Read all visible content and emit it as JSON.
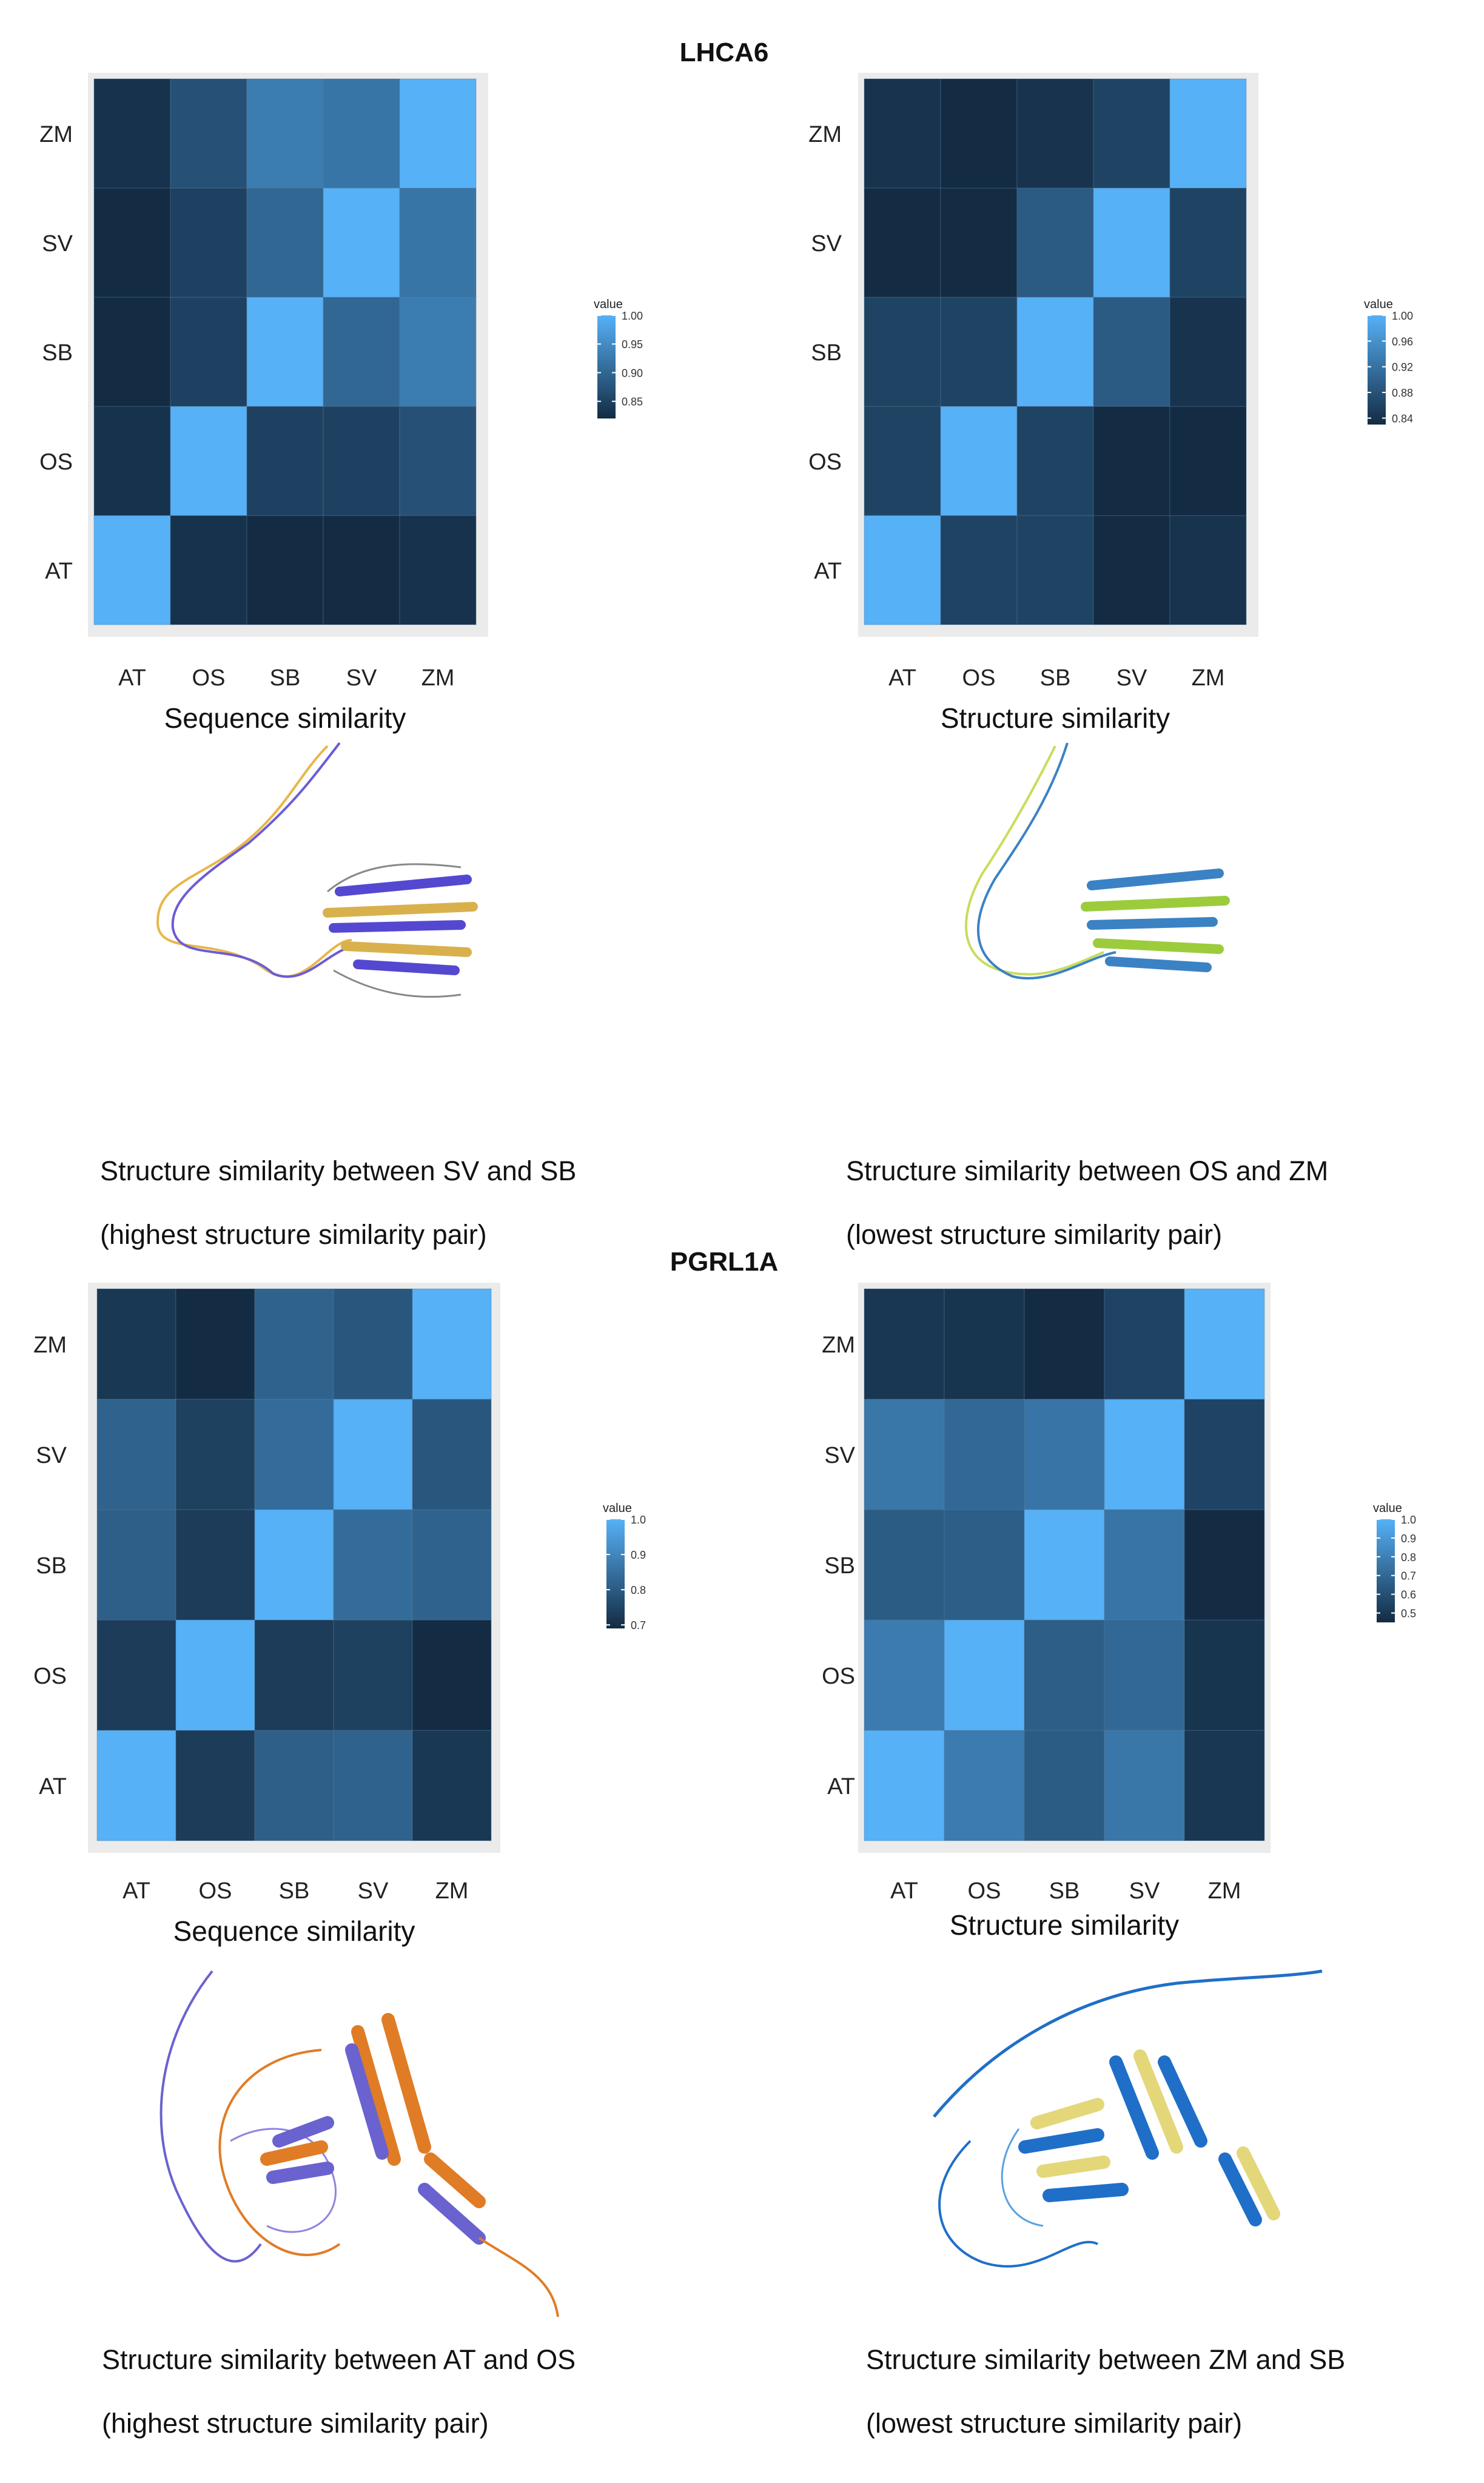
{
  "colors": {
    "low": "#132B43",
    "high": "#56B1F7",
    "panel_bg": "#EBEBEB",
    "grid": "#5c7d9a"
  },
  "sections": [
    {
      "title": "LHCA6"
    },
    {
      "title": "PGRL1A"
    }
  ],
  "chart_data": [
    {
      "type": "heatmap",
      "section": "LHCA6",
      "xlabel": "Sequence similarity",
      "x_categories": [
        "AT",
        "OS",
        "SB",
        "SV",
        "ZM"
      ],
      "y_categories": [
        "AT",
        "OS",
        "SB",
        "SV",
        "ZM"
      ],
      "values": [
        [
          1.0,
          0.83,
          0.82,
          0.82,
          0.83
        ],
        [
          0.83,
          1.0,
          0.85,
          0.85,
          0.87
        ],
        [
          0.82,
          0.85,
          1.0,
          0.9,
          0.93
        ],
        [
          0.82,
          0.85,
          0.9,
          1.0,
          0.92
        ],
        [
          0.83,
          0.87,
          0.93,
          0.92,
          1.0
        ]
      ],
      "legend": {
        "title": "value",
        "range": [
          0.82,
          1.0
        ],
        "ticks": [
          1.0,
          0.95,
          0.9,
          0.85
        ],
        "tick_labels": [
          "1.00",
          "0.95",
          "0.90",
          "0.85"
        ]
      }
    },
    {
      "type": "heatmap",
      "section": "LHCA6",
      "xlabel": "Structure similarity",
      "x_categories": [
        "AT",
        "OS",
        "SB",
        "SV",
        "ZM"
      ],
      "y_categories": [
        "AT",
        "OS",
        "SB",
        "SV",
        "ZM"
      ],
      "values": [
        [
          1.0,
          0.86,
          0.86,
          0.83,
          0.84
        ],
        [
          0.86,
          1.0,
          0.86,
          0.83,
          0.83
        ],
        [
          0.86,
          0.86,
          1.0,
          0.89,
          0.84
        ],
        [
          0.83,
          0.83,
          0.89,
          1.0,
          0.86
        ],
        [
          0.84,
          0.83,
          0.84,
          0.86,
          1.0
        ]
      ],
      "legend": {
        "title": "value",
        "range": [
          0.83,
          1.0
        ],
        "ticks": [
          1.0,
          0.96,
          0.92,
          0.88,
          0.84
        ],
        "tick_labels": [
          "1.00",
          "0.96",
          "0.92",
          "0.88",
          "0.84"
        ]
      }
    },
    {
      "type": "heatmap",
      "section": "PGRL1A",
      "xlabel": "Sequence similarity",
      "x_categories": [
        "AT",
        "OS",
        "SB",
        "SV",
        "ZM"
      ],
      "y_categories": [
        "AT",
        "OS",
        "SB",
        "SV",
        "ZM"
      ],
      "values": [
        [
          1.0,
          0.73,
          0.81,
          0.82,
          0.72
        ],
        [
          0.73,
          1.0,
          0.73,
          0.74,
          0.69
        ],
        [
          0.81,
          0.73,
          1.0,
          0.84,
          0.82
        ],
        [
          0.82,
          0.74,
          0.84,
          1.0,
          0.79
        ],
        [
          0.72,
          0.69,
          0.82,
          0.79,
          1.0
        ]
      ],
      "legend": {
        "title": "value",
        "range": [
          0.69,
          1.0
        ],
        "ticks": [
          1.0,
          0.9,
          0.8,
          0.7
        ],
        "tick_labels": [
          "1.0",
          "0.9",
          "0.8",
          "0.7"
        ]
      }
    },
    {
      "type": "heatmap",
      "section": "PGRL1A",
      "xlabel": "Structure similarity",
      "x_categories": [
        "AT",
        "OS",
        "SB",
        "SV",
        "ZM"
      ],
      "y_categories": [
        "AT",
        "OS",
        "SB",
        "SV",
        "ZM"
      ],
      "values": [
        [
          1.0,
          0.78,
          0.65,
          0.76,
          0.5
        ],
        [
          0.78,
          1.0,
          0.66,
          0.7,
          0.49
        ],
        [
          0.65,
          0.66,
          1.0,
          0.75,
          0.45
        ],
        [
          0.76,
          0.7,
          0.75,
          1.0,
          0.55
        ],
        [
          0.5,
          0.49,
          0.45,
          0.55,
          1.0
        ]
      ],
      "legend": {
        "title": "value",
        "range": [
          0.45,
          1.0
        ],
        "ticks": [
          1.0,
          0.9,
          0.8,
          0.7,
          0.6,
          0.5
        ],
        "tick_labels": [
          "1.0",
          "0.9",
          "0.8",
          "0.7",
          "0.6",
          "0.5"
        ]
      }
    }
  ],
  "captions": [
    {
      "line1": "Structure similarity between SV and SB",
      "line2": "(highest structure similarity pair)"
    },
    {
      "line1": "Structure similarity between OS and ZM",
      "line2": "(lowest structure similarity pair)"
    },
    {
      "line1": "Structure similarity between AT and OS",
      "line2": "(highest structure similarity pair)"
    },
    {
      "line1": "Structure similarity between ZM and SB",
      "line2": "(lowest structure similarity pair)"
    }
  ]
}
